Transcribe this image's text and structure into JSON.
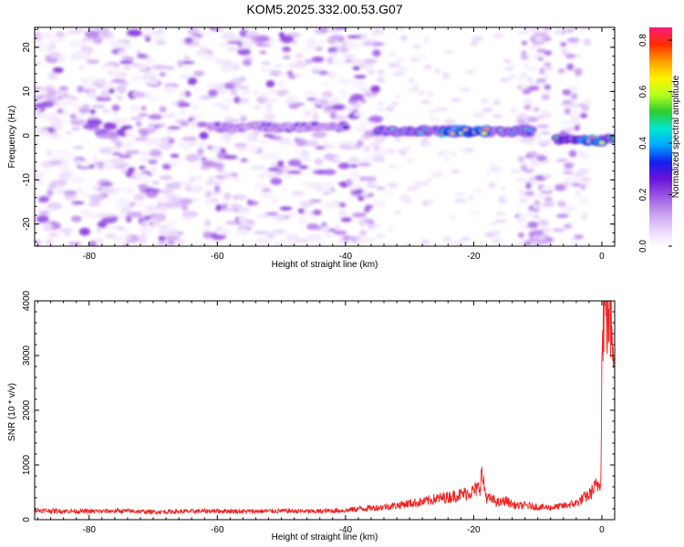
{
  "title": "KOM5.2025.332.00.53.G07",
  "colors": {
    "snr_line": "#ee2222",
    "spectrogram_cmap": [
      "#ffffff",
      "#e8d4fa",
      "#c79af0",
      "#9a55e3",
      "#6a12d8",
      "#1020ee",
      "#00a8ff",
      "#00e6d0",
      "#2ecc2e",
      "#b7ff1e",
      "#fff200",
      "#ff9c00",
      "#ff2a00",
      "#ff1a80"
    ]
  },
  "chart_data": [
    {
      "type": "heatmap",
      "xlabel": "Height of straight line (km)",
      "ylabel": "Frequency (Hz)",
      "xlim": [
        -88.5,
        2
      ],
      "ylim": [
        -25,
        24.5
      ],
      "xticks": [
        "-80",
        "-60",
        "-40",
        "-20",
        "0"
      ],
      "xtick_values": [
        -80,
        -60,
        -40,
        -20,
        0
      ],
      "yticks": [
        "-20",
        "-10",
        "0",
        "10",
        "20"
      ],
      "ytick_values": [
        -20,
        -10,
        0,
        10,
        20
      ],
      "colorbar": {
        "label": "Normalized spectral amplitude",
        "range": [
          0,
          0.85
        ],
        "ticks": [
          "0.0",
          "0.2",
          "0.4",
          "0.6",
          "0.8"
        ],
        "tick_values": [
          0.0,
          0.2,
          0.4,
          0.6,
          0.8
        ]
      },
      "features": [
        {
          "x_range": [
            -88.5,
            -36
          ],
          "y_center": 0,
          "amplitude": 0.1,
          "description": "scattered weak noise"
        },
        {
          "x_range": [
            -61,
            -40
          ],
          "y_center": 2,
          "amplitude": 0.3
        },
        {
          "x_range": [
            -35,
            -11
          ],
          "y_center": 1,
          "amplitude": 0.45
        },
        {
          "x_range": [
            -25,
            -18
          ],
          "y_center": 1,
          "amplitude": 0.82
        },
        {
          "x_range": [
            -7,
            2
          ],
          "y_center": -1,
          "amplitude": 0.55
        },
        {
          "x_range": [
            -3,
            0
          ],
          "y_center": -1,
          "amplitude": 0.8
        }
      ],
      "grid": false,
      "legend": "colorbar-right"
    },
    {
      "type": "line",
      "xlabel": "Height of straight line (km)",
      "ylabel": "SNR (10 * v/v)",
      "xlim": [
        -88.5,
        2
      ],
      "ylim": [
        0,
        4000
      ],
      "xticks": [
        "-80",
        "-60",
        "-40",
        "-20",
        "0"
      ],
      "xtick_values": [
        -80,
        -60,
        -40,
        -20,
        0
      ],
      "yticks": [
        "0",
        "1000",
        "2000",
        "3000",
        "4000"
      ],
      "ytick_values": [
        0,
        1000,
        2000,
        3000,
        4000
      ],
      "series": [
        {
          "x": [
            -88.5,
            -85,
            -80,
            -75,
            -70,
            -65,
            -60,
            -55,
            -50,
            -45,
            -40,
            -38,
            -35,
            -32,
            -30,
            -28,
            -26,
            -24,
            -22,
            -20,
            -19,
            -18.8,
            -18,
            -17,
            -16,
            -15,
            -14,
            -13,
            -12,
            -10,
            -8,
            -6,
            -4,
            -3,
            -2,
            -1,
            -0.5,
            -0.2,
            0,
            0.2,
            0.5,
            1,
            1.5,
            2
          ],
          "y": [
            170,
            160,
            150,
            160,
            140,
            150,
            160,
            150,
            160,
            150,
            170,
            200,
            220,
            260,
            300,
            320,
            380,
            410,
            460,
            520,
            600,
            850,
            400,
            360,
            300,
            350,
            280,
            250,
            260,
            230,
            220,
            250,
            300,
            380,
            450,
            600,
            650,
            700,
            2600,
            3900,
            4000,
            3850,
            3700,
            3300
          ]
        }
      ],
      "grid": false,
      "legend": "none"
    }
  ]
}
